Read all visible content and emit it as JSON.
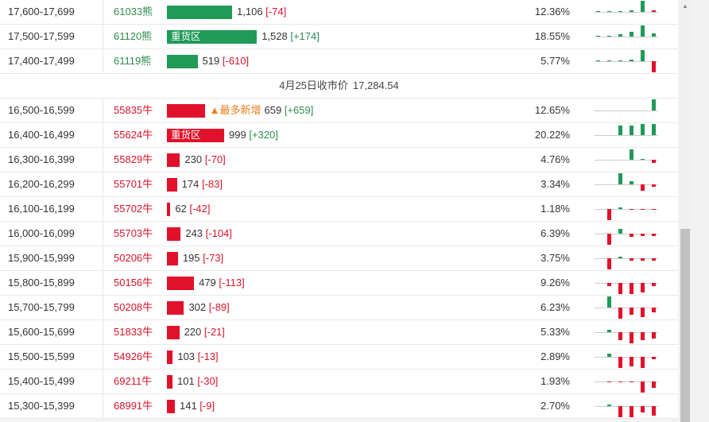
{
  "rows_top": [
    {
      "range": "17,600-17,699",
      "code": "61033熊",
      "bar": {
        "color": "green",
        "width_frac": 0.279,
        "label": ""
      },
      "value": "1,106",
      "change": "[-74]",
      "change_sign": "neg",
      "pct": "12.36%",
      "spark": [
        [
          0,
          "g",
          0
        ],
        [
          1,
          "g",
          0
        ],
        [
          2,
          "g",
          1
        ],
        [
          3,
          "g",
          2
        ],
        [
          4,
          "g",
          14
        ],
        [
          5,
          "r",
          2
        ]
      ]
    },
    {
      "range": "17,500-17,599",
      "code": "61120熊",
      "bar": {
        "color": "green",
        "width_frac": 0.385,
        "label": "重货区"
      },
      "value": "1,528",
      "change": "[+174]",
      "change_sign": "pos",
      "pct": "18.55%",
      "spark": [
        [
          0,
          "g",
          0
        ],
        [
          1,
          "g",
          0
        ],
        [
          2,
          "g",
          3
        ],
        [
          3,
          "g",
          6
        ],
        [
          4,
          "g",
          14
        ],
        [
          5,
          "g",
          4
        ]
      ]
    },
    {
      "range": "17,400-17,499",
      "code": "61119熊",
      "bar": {
        "color": "green",
        "width_frac": 0.131,
        "label": ""
      },
      "value": "519",
      "change": "[-610]",
      "change_sign": "neg",
      "pct": "5.77%",
      "spark": [
        [
          0,
          "g",
          0
        ],
        [
          1,
          "g",
          0
        ],
        [
          2,
          "g",
          1
        ],
        [
          3,
          "g",
          2
        ],
        [
          4,
          "g",
          14
        ],
        [
          5,
          "r",
          -14
        ]
      ]
    }
  ],
  "price_row": {
    "label": "4月25日收市价",
    "value": "17,284.54"
  },
  "rows_bottom": [
    {
      "range": "16,500-16,599",
      "code": "55835牛",
      "bar": {
        "color": "red",
        "width_frac": 0.162,
        "label": ""
      },
      "tag": "▲最多新增",
      "value": "659",
      "change": "[+659]",
      "change_sign": "pos",
      "pct": "12.65%",
      "spark": [
        [
          5,
          "g",
          14
        ]
      ]
    },
    {
      "range": "16,400-16,499",
      "code": "55624牛",
      "bar": {
        "color": "red",
        "width_frac": 0.245,
        "label": "重货区"
      },
      "value": "999",
      "change": "[+320]",
      "change_sign": "pos",
      "pct": "20.22%",
      "spark": [
        [
          2,
          "g",
          12
        ],
        [
          3,
          "g",
          12
        ],
        [
          4,
          "g",
          14
        ],
        [
          5,
          "g",
          14
        ]
      ]
    },
    {
      "range": "16,300-16,399",
      "code": "55829牛",
      "bar": {
        "color": "red",
        "width_frac": 0.056,
        "label": ""
      },
      "value": "230",
      "change": "[-70]",
      "change_sign": "neg",
      "pct": "4.76%",
      "spark": [
        [
          3,
          "g",
          13
        ],
        [
          4,
          "g",
          1
        ],
        [
          5,
          "r",
          -4
        ]
      ]
    },
    {
      "range": "16,200-16,299",
      "code": "55701牛",
      "bar": {
        "color": "red",
        "width_frac": 0.043,
        "label": ""
      },
      "value": "174",
      "change": "[-83]",
      "change_sign": "neg",
      "pct": "3.34%",
      "spark": [
        [
          2,
          "g",
          14
        ],
        [
          3,
          "g",
          4
        ],
        [
          4,
          "r",
          -8
        ],
        [
          5,
          "r",
          -3
        ]
      ]
    },
    {
      "range": "16,100-16,199",
      "code": "55702牛",
      "bar": {
        "color": "red",
        "width_frac": 0.015,
        "label": ""
      },
      "value": "62",
      "change": "[-42]",
      "change_sign": "neg",
      "pct": "1.18%",
      "spark": [
        [
          1,
          "r",
          -14
        ],
        [
          2,
          "g",
          2
        ],
        [
          3,
          "r",
          -1
        ],
        [
          4,
          "r",
          -1
        ],
        [
          5,
          "r",
          -1
        ]
      ]
    },
    {
      "range": "16,000-16,099",
      "code": "55703牛",
      "bar": {
        "color": "red",
        "width_frac": 0.059,
        "label": ""
      },
      "value": "243",
      "change": "[-104]",
      "change_sign": "neg",
      "pct": "6.39%",
      "spark": [
        [
          1,
          "r",
          -14
        ],
        [
          2,
          "g",
          6
        ],
        [
          3,
          "r",
          -4
        ],
        [
          4,
          "r",
          -3
        ],
        [
          5,
          "r",
          -3
        ]
      ]
    },
    {
      "range": "15,900-15,999",
      "code": "50206牛",
      "bar": {
        "color": "red",
        "width_frac": 0.047,
        "label": ""
      },
      "value": "195",
      "change": "[-73]",
      "change_sign": "neg",
      "pct": "3.75%",
      "spark": [
        [
          1,
          "r",
          -14
        ],
        [
          2,
          "g",
          2
        ],
        [
          3,
          "r",
          -3
        ],
        [
          4,
          "r",
          -3
        ],
        [
          5,
          "r",
          -3
        ]
      ]
    },
    {
      "range": "15,800-15,899",
      "code": "50156牛",
      "bar": {
        "color": "red",
        "width_frac": 0.116,
        "label": ""
      },
      "value": "479",
      "change": "[-113]",
      "change_sign": "neg",
      "pct": "9.26%",
      "spark": [
        [
          1,
          "r",
          -4
        ],
        [
          2,
          "r",
          -14
        ],
        [
          3,
          "r",
          -14
        ],
        [
          4,
          "r",
          -12
        ],
        [
          5,
          "r",
          -4
        ]
      ]
    },
    {
      "range": "15,700-15,799",
      "code": "50208牛",
      "bar": {
        "color": "red",
        "width_frac": 0.073,
        "label": ""
      },
      "value": "302",
      "change": "[-89]",
      "change_sign": "neg",
      "pct": "6.23%",
      "spark": [
        [
          1,
          "g",
          14
        ],
        [
          2,
          "r",
          -14
        ],
        [
          3,
          "r",
          -9
        ],
        [
          4,
          "r",
          -12
        ],
        [
          5,
          "r",
          -6
        ]
      ]
    },
    {
      "range": "15,600-15,699",
      "code": "51833牛",
      "bar": {
        "color": "red",
        "width_frac": 0.053,
        "label": ""
      },
      "value": "220",
      "change": "[-21]",
      "change_sign": "neg",
      "pct": "5.33%",
      "spark": [
        [
          1,
          "g",
          3
        ],
        [
          2,
          "r",
          -10
        ],
        [
          3,
          "r",
          -14
        ],
        [
          4,
          "r",
          -10
        ],
        [
          5,
          "r",
          -8
        ]
      ]
    },
    {
      "range": "15,500-15,599",
      "code": "54926牛",
      "bar": {
        "color": "red",
        "width_frac": 0.025,
        "label": ""
      },
      "value": "103",
      "change": "[-13]",
      "change_sign": "neg",
      "pct": "2.89%",
      "spark": [
        [
          1,
          "g",
          4
        ],
        [
          2,
          "r",
          -14
        ],
        [
          3,
          "r",
          -12
        ],
        [
          4,
          "r",
          -14
        ],
        [
          5,
          "r",
          -3
        ]
      ]
    },
    {
      "range": "15,400-15,499",
      "code": "69211牛",
      "bar": {
        "color": "red",
        "width_frac": 0.024,
        "label": ""
      },
      "value": "101",
      "change": "[-30]",
      "change_sign": "neg",
      "pct": "1.93%",
      "spark": [
        [
          1,
          "r",
          -1
        ],
        [
          2,
          "r",
          -1
        ],
        [
          3,
          "r",
          -1
        ],
        [
          4,
          "r",
          -14
        ],
        [
          5,
          "r",
          -8
        ]
      ]
    },
    {
      "range": "15,300-15,399",
      "code": "68991牛",
      "bar": {
        "color": "red",
        "width_frac": 0.034,
        "label": ""
      },
      "value": "141",
      "change": "[-9]",
      "change_sign": "neg",
      "pct": "2.70%",
      "spark": [
        [
          1,
          "g",
          2
        ],
        [
          2,
          "r",
          -14
        ],
        [
          3,
          "r",
          -14
        ],
        [
          4,
          "r",
          -8
        ],
        [
          5,
          "r",
          -12
        ]
      ]
    }
  ]
}
